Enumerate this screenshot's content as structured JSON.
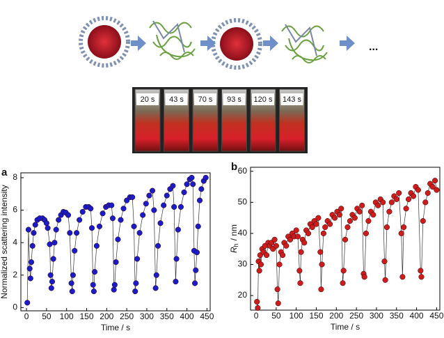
{
  "illustration": {
    "vial_labels": [
      "20 s",
      "43 s",
      "70 s",
      "93 s",
      "120 s",
      "143 s"
    ],
    "ellipsis": "..."
  },
  "chart_data": [
    {
      "type": "line",
      "panel": "a",
      "x_label": "Time / s",
      "y_label": "Normalized scattering intensity",
      "xlim": [
        -14,
        458
      ],
      "ylim": [
        -0.2,
        8.3
      ],
      "xticks": [
        0,
        50,
        100,
        150,
        200,
        250,
        300,
        350,
        400,
        450
      ],
      "yticks": [
        0,
        2,
        4,
        6,
        8
      ],
      "series": [
        {
          "color": "#1b1bc8",
          "x": [
            2,
            5,
            8,
            10,
            12,
            15,
            18,
            22,
            27,
            33,
            40,
            45,
            50,
            53,
            58,
            60,
            62,
            64,
            67,
            70,
            74,
            80,
            86,
            92,
            98,
            104,
            108,
            112,
            114,
            116,
            120,
            125,
            132,
            140,
            148,
            155,
            160,
            163,
            166,
            168,
            170,
            175,
            182,
            190,
            198,
            205,
            212,
            215,
            218,
            220,
            223,
            228,
            235,
            242,
            250,
            258,
            264,
            268,
            271,
            273,
            276,
            282,
            290,
            298,
            306,
            314,
            318,
            322,
            324,
            328,
            334,
            342,
            350,
            358,
            365,
            368,
            372,
            374,
            378,
            385,
            393,
            400,
            407,
            412,
            415,
            418,
            420,
            422,
            425,
            428,
            432,
            436,
            442,
            447
          ],
          "values": [
            0.3,
            4.8,
            2.4,
            1.8,
            2.8,
            3.8,
            4.6,
            5.1,
            5.4,
            5.5,
            5.5,
            5.4,
            5.2,
            4.9,
            3.9,
            2.0,
            1.2,
            1.6,
            3.0,
            4.0,
            4.8,
            5.4,
            5.7,
            5.9,
            5.85,
            5.7,
            4.6,
            1.5,
            1.0,
            2.0,
            3.5,
            4.6,
            5.4,
            5.9,
            6.2,
            6.2,
            6.1,
            4.9,
            1.4,
            1.0,
            2.2,
            3.8,
            5.0,
            5.8,
            6.2,
            6.3,
            6.3,
            5.5,
            1.1,
            1.4,
            2.8,
            4.2,
            5.4,
            6.1,
            6.6,
            6.8,
            6.8,
            5.0,
            1.0,
            1.5,
            3.0,
            4.6,
            5.7,
            6.4,
            6.9,
            7.2,
            6.0,
            1.2,
            2.0,
            3.8,
            5.2,
            6.3,
            6.9,
            7.3,
            7.5,
            6.2,
            1.6,
            3.0,
            4.8,
            6.2,
            7.1,
            7.6,
            7.9,
            8.0,
            7.6,
            3.5,
            1.5,
            2.3,
            3.4,
            5.0,
            6.6,
            7.3,
            7.8,
            8.0
          ]
        }
      ]
    },
    {
      "type": "line",
      "panel": "b",
      "x_label": "Time / s",
      "y_label_symbol": "R",
      "y_label_subscript": "h",
      "y_label_unit": "/ nm",
      "xlim": [
        -14,
        458
      ],
      "ylim": [
        15.3,
        61.3
      ],
      "xticks": [
        0,
        50,
        100,
        150,
        200,
        250,
        300,
        350,
        400,
        450
      ],
      "yticks": [
        20,
        30,
        40,
        50,
        60
      ],
      "series": [
        {
          "color": "#cc1c1c",
          "x": [
            2,
            4,
            6,
            8,
            10,
            12,
            15,
            18,
            22,
            26,
            30,
            34,
            38,
            42,
            46,
            50,
            53,
            55,
            58,
            62,
            66,
            70,
            75,
            80,
            85,
            90,
            95,
            100,
            104,
            108,
            110,
            112,
            116,
            120,
            125,
            130,
            135,
            140,
            145,
            150,
            155,
            160,
            162,
            164,
            168,
            172,
            178,
            184,
            190,
            196,
            202,
            208,
            212,
            216,
            218,
            222,
            228,
            234,
            240,
            246,
            252,
            258,
            264,
            268,
            270,
            274,
            280,
            286,
            292,
            298,
            304,
            310,
            316,
            320,
            322,
            326,
            332,
            338,
            344,
            350,
            356,
            362,
            365,
            368,
            374,
            380,
            386,
            392,
            398,
            404,
            410,
            412,
            416,
            422,
            428,
            434,
            440,
            446,
            450
          ],
          "values": [
            18,
            16,
            31,
            28,
            33,
            30,
            35,
            34,
            36,
            33,
            37,
            36,
            37,
            35,
            38,
            36,
            22,
            17.5,
            30,
            34,
            33,
            37,
            36,
            39,
            38,
            40,
            39,
            41,
            39,
            28,
            24,
            34,
            38,
            37,
            41,
            40,
            43,
            42,
            44,
            43,
            45,
            34,
            22,
            30,
            40,
            42,
            44,
            43,
            46,
            45,
            47,
            46,
            48,
            24,
            28,
            38,
            42,
            44,
            46,
            45,
            48,
            47,
            49,
            27,
            26,
            40,
            44,
            47,
            46,
            50,
            49,
            51,
            50,
            31,
            25,
            42,
            47,
            50,
            52,
            51,
            53,
            40,
            26,
            42,
            48,
            51,
            53,
            52,
            55,
            54,
            28,
            26,
            44,
            50,
            53,
            56,
            55,
            57,
            54
          ]
        }
      ]
    }
  ]
}
